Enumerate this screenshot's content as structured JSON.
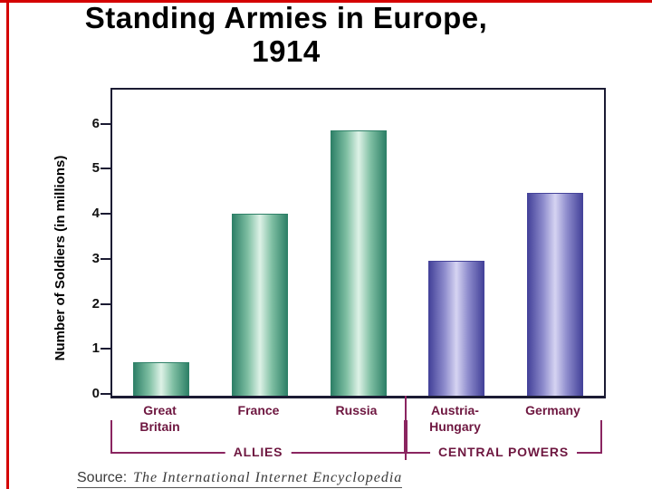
{
  "title": {
    "line1": "Standing Armies in Europe,",
    "line2": "1914"
  },
  "source": {
    "prefix": "Source:",
    "text": "The International Internet Encyclopedia"
  },
  "chart_data": {
    "type": "bar",
    "title": "Standing Armies in Europe, 1914",
    "xlabel": "",
    "ylabel": "Number of Soldiers (in millions)",
    "categories": [
      "Great Britain",
      "France",
      "Russia",
      "Austria-Hungary",
      "Germany"
    ],
    "category_label_lines": [
      [
        "Great",
        "Britain"
      ],
      [
        "France"
      ],
      [
        "Russia"
      ],
      [
        "Austria-",
        "Hungary"
      ],
      [
        "Germany"
      ]
    ],
    "values": [
      0.75,
      4.05,
      5.9,
      3.0,
      4.5
    ],
    "yticks": [
      0,
      1,
      2,
      3,
      4,
      5,
      6
    ],
    "ylim": [
      0,
      6.8
    ],
    "grid": false,
    "legend": false,
    "groups": [
      {
        "label": "ALLIES",
        "from": 0,
        "to": 2,
        "bar_dark": "#2f8168",
        "bar_mid": "#7fbfa3",
        "bar_light": "#def2e7"
      },
      {
        "label": "CENTRAL POWERS",
        "from": 3,
        "to": 4,
        "bar_dark": "#45439a",
        "bar_mid": "#8d8bcc",
        "bar_light": "#d6d4f2"
      }
    ]
  },
  "colors": {
    "axis": "#1b1b33",
    "category_label": "#6e1740",
    "bracket": "#8a2560",
    "slide_border_red": "#d40000"
  }
}
